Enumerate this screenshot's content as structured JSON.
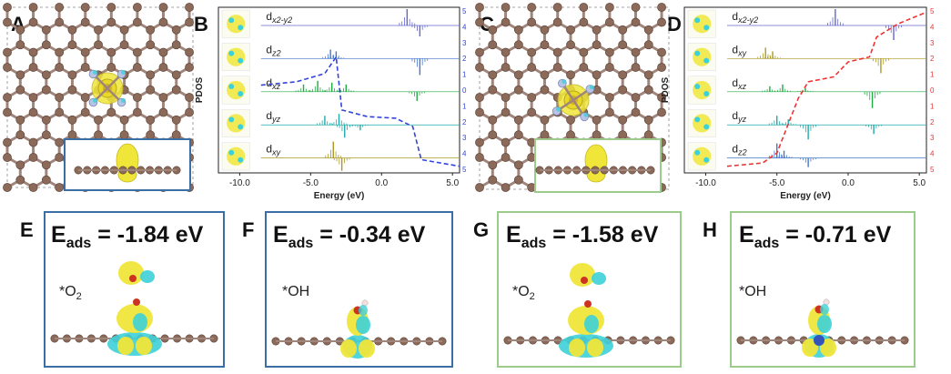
{
  "panels": {
    "A": {
      "letter": "A"
    },
    "B": {
      "letter": "B",
      "ylabel": "PDOS",
      "xlabel": "Energy (eV)",
      "xticks": [
        "-10.0",
        "-5.0",
        "0.0",
        "5.0"
      ],
      "orbitals": [
        "dx2-y2",
        "dz2",
        "dxz",
        "dyz",
        "dxy"
      ],
      "right_ticks": [
        "5",
        "4",
        "3",
        "2",
        "1",
        "0",
        "1",
        "2",
        "3",
        "4",
        "5"
      ]
    },
    "C": {
      "letter": "C"
    },
    "D": {
      "letter": "D",
      "ylabel": "PDOS",
      "xlabel": "Energy (eV)",
      "xticks": [
        "-10.0",
        "-5.0",
        "0.0",
        "5.0"
      ],
      "orbitals": [
        "dx2-y2",
        "dxy",
        "dxz",
        "dyz",
        "dz2"
      ],
      "right_ticks": [
        "5",
        "4",
        "3",
        "2",
        "1",
        "0",
        "1",
        "2",
        "3",
        "4",
        "5"
      ]
    },
    "E": {
      "letter": "E",
      "eads_label": "E",
      "eads_sub": "ads",
      "eads_value": "= -1.84 eV",
      "adsorbate": "*O",
      "adsorbate_sub": "2"
    },
    "F": {
      "letter": "F",
      "eads_label": "E",
      "eads_sub": "ads",
      "eads_value": "= -0.34 eV",
      "adsorbate": "*OH"
    },
    "G": {
      "letter": "G",
      "eads_label": "E",
      "eads_sub": "ads",
      "eads_value": "= -1.58 eV",
      "adsorbate": "*O",
      "adsorbate_sub": "2"
    },
    "H": {
      "letter": "H",
      "eads_label": "E",
      "eads_sub": "ads",
      "eads_value": "= -0.71 eV",
      "adsorbate": "*OH"
    }
  },
  "colors": {
    "carbon": "#8b6a5a",
    "bond": "#a0857a",
    "nitrogen": "#b8c4e6",
    "isosurface_yellow": "#f0e63a",
    "isosurface_cyan": "#3ed0d8",
    "blue_frame": "#3a6fa5",
    "green_frame": "#9ccc8c",
    "blue_dash": "#3344dd",
    "red_dash": "#ee3333",
    "trace_purple": "#6666cc",
    "trace_blue": "#4477cc",
    "trace_green": "#22aa44",
    "trace_teal": "#22aaaa",
    "trace_olive": "#aa9922"
  },
  "chart_data": [
    {
      "type": "line",
      "panel": "B",
      "xlabel": "Energy (eV)",
      "ylabel": "PDOS",
      "xlim": [
        -11.5,
        5.5
      ],
      "series": [
        {
          "name": "dx2-y2",
          "peaks": [
            [
              1.8,
              0.9
            ],
            [
              2.7,
              -0.6
            ]
          ]
        },
        {
          "name": "dz2",
          "peaks": [
            [
              -3.6,
              0.5
            ],
            [
              -3.2,
              0.4
            ],
            [
              2.7,
              -0.9
            ]
          ]
        },
        {
          "name": "dxz",
          "peaks": [
            [
              -5.5,
              0.4
            ],
            [
              -4.5,
              0.6
            ],
            [
              -3.5,
              0.5
            ],
            [
              -2.5,
              0.4
            ],
            [
              2.5,
              -0.5
            ]
          ]
        },
        {
          "name": "dyz",
          "peaks": [
            [
              -4.0,
              0.5
            ],
            [
              -3.0,
              0.6
            ],
            [
              -2.6,
              -0.7
            ],
            [
              -1.5,
              -0.3
            ]
          ]
        },
        {
          "name": "dxy",
          "peaks": [
            [
              -3.4,
              0.9
            ],
            [
              -2.8,
              -0.7
            ]
          ]
        }
      ]
    },
    {
      "type": "line",
      "panel": "D",
      "xlabel": "Energy (eV)",
      "ylabel": "PDOS",
      "xlim": [
        -11.5,
        5.5
      ],
      "series": [
        {
          "name": "dx2-y2",
          "peaks": [
            [
              -0.9,
              0.9
            ],
            [
              3.2,
              -0.8
            ]
          ]
        },
        {
          "name": "dxy",
          "peaks": [
            [
              -5.8,
              0.6
            ],
            [
              -5.3,
              0.4
            ],
            [
              2.3,
              -0.8
            ]
          ]
        },
        {
          "name": "dxz",
          "peaks": [
            [
              -5.5,
              0.3
            ],
            [
              -4.6,
              0.4
            ],
            [
              -3.0,
              0.2
            ],
            [
              1.7,
              -0.9
            ]
          ]
        },
        {
          "name": "dyz",
          "peaks": [
            [
              -5.0,
              0.5
            ],
            [
              -4.2,
              0.3
            ],
            [
              -2.8,
              -0.8
            ],
            [
              1.8,
              -0.5
            ]
          ]
        },
        {
          "name": "dz2",
          "peaks": [
            [
              -5.0,
              0.8
            ],
            [
              -4.5,
              0.4
            ],
            [
              -2.8,
              -0.5
            ]
          ]
        }
      ]
    }
  ]
}
